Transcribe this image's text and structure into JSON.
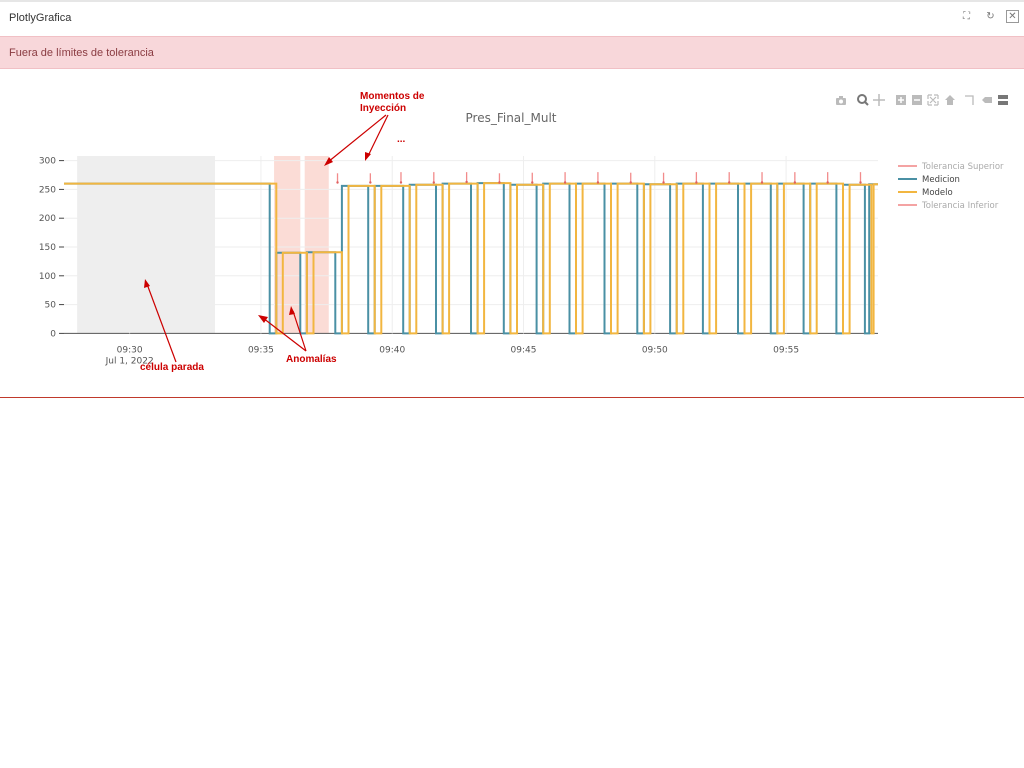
{
  "window": {
    "title": "PlotlyGrafica"
  },
  "window_controls": [
    {
      "name": "fullscreen-icon",
      "glyph": "⛶"
    },
    {
      "name": "refresh-icon",
      "glyph": "↻"
    },
    {
      "name": "close-icon",
      "glyph": "✕"
    }
  ],
  "alert": {
    "message": "Fuera de límites de tolerancia",
    "color": "#f8d7da"
  },
  "modebar": [
    "camera-icon",
    "zoom-icon",
    "pan-icon",
    "zoom-in-icon",
    "zoom-out-icon",
    "autoscale-icon",
    "reset-axes-icon",
    "spike-lines-icon",
    "hover-closest-icon",
    "hover-compare-icon"
  ],
  "annotations": {
    "injection_line1": "Momentos de",
    "injection_line2": "Inyección",
    "ellipsis": "...",
    "stopped": "célula parada",
    "anomalies": "Anomalías",
    "color": "#cc0000"
  },
  "chart_data": {
    "type": "line",
    "title": "Pres_Final_Mult",
    "x_axis": {
      "type": "date",
      "range": [
        "2022-07-01T09:27:30",
        "2022-07-01T09:58:30"
      ],
      "ticks": [
        {
          "x": "2022-07-01T09:30:00",
          "label": "09:30",
          "sub": "Jul 1, 2022"
        },
        {
          "x": "2022-07-01T09:35:00",
          "label": "09:35"
        },
        {
          "x": "2022-07-01T09:40:00",
          "label": "09:40"
        },
        {
          "x": "2022-07-01T09:45:00",
          "label": "09:45"
        },
        {
          "x": "2022-07-01T09:50:00",
          "label": "09:50"
        },
        {
          "x": "2022-07-01T09:55:00",
          "label": "09:55"
        }
      ]
    },
    "y_axis": {
      "range": [
        -8,
        308
      ],
      "ticks": [
        0,
        50,
        100,
        150,
        200,
        250,
        300
      ]
    },
    "grid": true,
    "legend_position": "right",
    "legend": [
      {
        "name": "Tolerancia Superior",
        "color": "#f4a3a3"
      },
      {
        "name": "Medicion",
        "color": "#4a90a4"
      },
      {
        "name": "Modelo",
        "color": "#f2b640"
      },
      {
        "name": "Tolerancia Inferior",
        "color": "#f4a3a3"
      }
    ],
    "shaded_regions": [
      {
        "x0": "2022-07-01T09:28:00",
        "x1": "2022-07-01T09:33:15",
        "color": "#eeeeee"
      },
      {
        "x0": "2022-07-01T09:35:30",
        "x1": "2022-07-01T09:36:30",
        "color": "#fbdcd6"
      },
      {
        "x0": "2022-07-01T09:36:40",
        "x1": "2022-07-01T09:37:35",
        "color": "#fbdcd6"
      }
    ],
    "cycles": [
      {
        "dip": "2022-07-01T09:35:30",
        "level": 140
      },
      {
        "dip": "2022-07-01T09:36:40",
        "level": 140
      },
      {
        "dip": "2022-07-01T09:38:00",
        "level": 256
      },
      {
        "dip": "2022-07-01T09:39:20",
        "level": 256
      },
      {
        "dip": "2022-07-01T09:40:30",
        "level": 258
      },
      {
        "dip": "2022-07-01T09:41:40",
        "level": 260
      },
      {
        "dip": "2022-07-01T09:43:00",
        "level": 261
      },
      {
        "dip": "2022-07-01T09:44:20",
        "level": 258
      },
      {
        "dip": "2022-07-01T09:45:30",
        "level": 260
      },
      {
        "dip": "2022-07-01T09:46:40",
        "level": 260
      },
      {
        "dip": "2022-07-01T09:48:00",
        "level": 260
      },
      {
        "dip": "2022-07-01T09:49:20",
        "level": 259
      },
      {
        "dip": "2022-07-01T09:50:30",
        "level": 260
      },
      {
        "dip": "2022-07-01T09:51:40",
        "level": 260
      },
      {
        "dip": "2022-07-01T09:53:00",
        "level": 260
      },
      {
        "dip": "2022-07-01T09:54:20",
        "level": 260
      },
      {
        "dip": "2022-07-01T09:55:30",
        "level": 260
      },
      {
        "dip": "2022-07-01T09:56:40",
        "level": 260
      },
      {
        "dip": "2022-07-01T09:58:00",
        "level": 260
      }
    ],
    "initial_level": 260,
    "series": [
      {
        "name": "Medicion",
        "color": "#4a90a4",
        "points": [
          [
            "2022-07-01T09:27:30",
            260
          ],
          [
            "2022-07-01T09:35:20",
            260
          ],
          [
            "2022-07-01T09:35:20",
            0
          ],
          [
            "2022-07-01T09:35:35",
            0
          ],
          [
            "2022-07-01T09:35:35",
            140
          ],
          [
            "2022-07-01T09:36:30",
            140
          ],
          [
            "2022-07-01T09:36:30",
            0
          ],
          [
            "2022-07-01T09:36:45",
            0
          ],
          [
            "2022-07-01T09:36:45",
            141
          ],
          [
            "2022-07-01T09:37:50",
            141
          ],
          [
            "2022-07-01T09:37:50",
            0
          ],
          [
            "2022-07-01T09:38:05",
            0
          ],
          [
            "2022-07-01T09:38:05",
            256
          ],
          [
            "2022-07-01T09:39:05",
            256
          ],
          [
            "2022-07-01T09:39:05",
            0
          ],
          [
            "2022-07-01T09:39:20",
            0
          ],
          [
            "2022-07-01T09:39:20",
            256
          ],
          [
            "2022-07-01T09:40:25",
            256
          ],
          [
            "2022-07-01T09:40:25",
            0
          ],
          [
            "2022-07-01T09:40:40",
            0
          ],
          [
            "2022-07-01T09:40:40",
            258
          ],
          [
            "2022-07-01T09:41:40",
            258
          ],
          [
            "2022-07-01T09:41:40",
            0
          ],
          [
            "2022-07-01T09:41:55",
            0
          ],
          [
            "2022-07-01T09:41:55",
            260
          ],
          [
            "2022-07-01T09:43:00",
            260
          ],
          [
            "2022-07-01T09:43:00",
            0
          ],
          [
            "2022-07-01T09:43:15",
            0
          ],
          [
            "2022-07-01T09:43:15",
            261
          ],
          [
            "2022-07-01T09:44:15",
            261
          ],
          [
            "2022-07-01T09:44:15",
            0
          ],
          [
            "2022-07-01T09:44:30",
            0
          ],
          [
            "2022-07-01T09:44:30",
            258
          ],
          [
            "2022-07-01T09:45:30",
            258
          ],
          [
            "2022-07-01T09:45:30",
            0
          ],
          [
            "2022-07-01T09:45:45",
            0
          ],
          [
            "2022-07-01T09:45:45",
            260
          ],
          [
            "2022-07-01T09:46:45",
            260
          ],
          [
            "2022-07-01T09:46:45",
            0
          ],
          [
            "2022-07-01T09:47:00",
            0
          ],
          [
            "2022-07-01T09:47:00",
            260
          ],
          [
            "2022-07-01T09:48:05",
            260
          ],
          [
            "2022-07-01T09:48:05",
            0
          ],
          [
            "2022-07-01T09:48:20",
            0
          ],
          [
            "2022-07-01T09:48:20",
            260
          ],
          [
            "2022-07-01T09:49:20",
            260
          ],
          [
            "2022-07-01T09:49:20",
            0
          ],
          [
            "2022-07-01T09:49:35",
            0
          ],
          [
            "2022-07-01T09:49:35",
            259
          ],
          [
            "2022-07-01T09:50:35",
            259
          ],
          [
            "2022-07-01T09:50:35",
            0
          ],
          [
            "2022-07-01T09:50:50",
            0
          ],
          [
            "2022-07-01T09:50:50",
            260
          ],
          [
            "2022-07-01T09:51:50",
            260
          ],
          [
            "2022-07-01T09:51:50",
            0
          ],
          [
            "2022-07-01T09:52:05",
            0
          ],
          [
            "2022-07-01T09:52:05",
            260
          ],
          [
            "2022-07-01T09:53:10",
            260
          ],
          [
            "2022-07-01T09:53:10",
            0
          ],
          [
            "2022-07-01T09:53:25",
            0
          ],
          [
            "2022-07-01T09:53:25",
            260
          ],
          [
            "2022-07-01T09:54:25",
            260
          ],
          [
            "2022-07-01T09:54:25",
            0
          ],
          [
            "2022-07-01T09:54:40",
            0
          ],
          [
            "2022-07-01T09:54:40",
            260
          ],
          [
            "2022-07-01T09:55:40",
            260
          ],
          [
            "2022-07-01T09:55:40",
            0
          ],
          [
            "2022-07-01T09:55:55",
            0
          ],
          [
            "2022-07-01T09:55:55",
            260
          ],
          [
            "2022-07-01T09:56:55",
            260
          ],
          [
            "2022-07-01T09:56:55",
            0
          ],
          [
            "2022-07-01T09:57:10",
            0
          ],
          [
            "2022-07-01T09:57:10",
            258
          ],
          [
            "2022-07-01T09:58:00",
            258
          ],
          [
            "2022-07-01T09:58:00",
            0
          ],
          [
            "2022-07-01T09:58:10",
            0
          ],
          [
            "2022-07-01T09:58:10",
            259
          ],
          [
            "2022-07-01T09:58:30",
            259
          ]
        ]
      },
      {
        "name": "Modelo",
        "color": "#f2b640",
        "points": [
          [
            "2022-07-01T09:27:30",
            260
          ],
          [
            "2022-07-01T09:35:35",
            260
          ],
          [
            "2022-07-01T09:35:35",
            0
          ],
          [
            "2022-07-01T09:35:50",
            0
          ],
          [
            "2022-07-01T09:35:50",
            140
          ],
          [
            "2022-07-01T09:36:45",
            140
          ],
          [
            "2022-07-01T09:36:45",
            0
          ],
          [
            "2022-07-01T09:37:00",
            0
          ],
          [
            "2022-07-01T09:37:00",
            141
          ],
          [
            "2022-07-01T09:38:05",
            141
          ],
          [
            "2022-07-01T09:38:05",
            0
          ],
          [
            "2022-07-01T09:38:20",
            0
          ],
          [
            "2022-07-01T09:38:20",
            256
          ],
          [
            "2022-07-01T09:39:20",
            256
          ],
          [
            "2022-07-01T09:39:20",
            0
          ],
          [
            "2022-07-01T09:39:35",
            0
          ],
          [
            "2022-07-01T09:39:35",
            256
          ],
          [
            "2022-07-01T09:40:40",
            256
          ],
          [
            "2022-07-01T09:40:40",
            0
          ],
          [
            "2022-07-01T09:40:55",
            0
          ],
          [
            "2022-07-01T09:40:55",
            258
          ],
          [
            "2022-07-01T09:41:55",
            258
          ],
          [
            "2022-07-01T09:41:55",
            0
          ],
          [
            "2022-07-01T09:42:10",
            0
          ],
          [
            "2022-07-01T09:42:10",
            260
          ],
          [
            "2022-07-01T09:43:15",
            260
          ],
          [
            "2022-07-01T09:43:15",
            0
          ],
          [
            "2022-07-01T09:43:30",
            0
          ],
          [
            "2022-07-01T09:43:30",
            261
          ],
          [
            "2022-07-01T09:44:30",
            261
          ],
          [
            "2022-07-01T09:44:30",
            0
          ],
          [
            "2022-07-01T09:44:45",
            0
          ],
          [
            "2022-07-01T09:44:45",
            258
          ],
          [
            "2022-07-01T09:45:45",
            258
          ],
          [
            "2022-07-01T09:45:45",
            0
          ],
          [
            "2022-07-01T09:46:00",
            0
          ],
          [
            "2022-07-01T09:46:00",
            260
          ],
          [
            "2022-07-01T09:47:00",
            260
          ],
          [
            "2022-07-01T09:47:00",
            0
          ],
          [
            "2022-07-01T09:47:15",
            0
          ],
          [
            "2022-07-01T09:47:15",
            260
          ],
          [
            "2022-07-01T09:48:20",
            260
          ],
          [
            "2022-07-01T09:48:20",
            0
          ],
          [
            "2022-07-01T09:48:35",
            0
          ],
          [
            "2022-07-01T09:48:35",
            260
          ],
          [
            "2022-07-01T09:49:35",
            260
          ],
          [
            "2022-07-01T09:49:35",
            0
          ],
          [
            "2022-07-01T09:49:50",
            0
          ],
          [
            "2022-07-01T09:49:50",
            259
          ],
          [
            "2022-07-01T09:50:50",
            259
          ],
          [
            "2022-07-01T09:50:50",
            0
          ],
          [
            "2022-07-01T09:51:05",
            0
          ],
          [
            "2022-07-01T09:51:05",
            260
          ],
          [
            "2022-07-01T09:52:05",
            260
          ],
          [
            "2022-07-01T09:52:05",
            0
          ],
          [
            "2022-07-01T09:52:20",
            0
          ],
          [
            "2022-07-01T09:52:20",
            260
          ],
          [
            "2022-07-01T09:53:25",
            260
          ],
          [
            "2022-07-01T09:53:25",
            0
          ],
          [
            "2022-07-01T09:53:40",
            0
          ],
          [
            "2022-07-01T09:53:40",
            260
          ],
          [
            "2022-07-01T09:54:40",
            260
          ],
          [
            "2022-07-01T09:54:40",
            0
          ],
          [
            "2022-07-01T09:54:55",
            0
          ],
          [
            "2022-07-01T09:54:55",
            260
          ],
          [
            "2022-07-01T09:55:55",
            260
          ],
          [
            "2022-07-01T09:55:55",
            0
          ],
          [
            "2022-07-01T09:56:10",
            0
          ],
          [
            "2022-07-01T09:56:10",
            260
          ],
          [
            "2022-07-01T09:57:10",
            260
          ],
          [
            "2022-07-01T09:57:10",
            0
          ],
          [
            "2022-07-01T09:57:25",
            0
          ],
          [
            "2022-07-01T09:57:25",
            258
          ],
          [
            "2022-07-01T09:58:15",
            258
          ],
          [
            "2022-07-01T09:58:15",
            0
          ],
          [
            "2022-07-01T09:58:20",
            0
          ],
          [
            "2022-07-01T09:58:20",
            259
          ],
          [
            "2022-07-01T09:58:30",
            259
          ]
        ]
      }
    ],
    "injection_spikes": [
      {
        "x": "2022-07-01T09:37:55",
        "y0": 262,
        "y1": 278
      },
      {
        "x": "2022-07-01T09:39:10",
        "y0": 262,
        "y1": 278
      },
      {
        "x": "2022-07-01T09:40:20",
        "y0": 262,
        "y1": 280
      },
      {
        "x": "2022-07-01T09:41:35",
        "y0": 262,
        "y1": 280
      },
      {
        "x": "2022-07-01T09:42:50",
        "y0": 263,
        "y1": 280
      },
      {
        "x": "2022-07-01T09:44:05",
        "y0": 262,
        "y1": 278
      },
      {
        "x": "2022-07-01T09:45:20",
        "y0": 262,
        "y1": 279
      },
      {
        "x": "2022-07-01T09:46:35",
        "y0": 262,
        "y1": 280
      },
      {
        "x": "2022-07-01T09:47:50",
        "y0": 262,
        "y1": 280
      },
      {
        "x": "2022-07-01T09:49:05",
        "y0": 262,
        "y1": 279
      },
      {
        "x": "2022-07-01T09:50:20",
        "y0": 262,
        "y1": 279
      },
      {
        "x": "2022-07-01T09:51:35",
        "y0": 262,
        "y1": 280
      },
      {
        "x": "2022-07-01T09:52:50",
        "y0": 262,
        "y1": 280
      },
      {
        "x": "2022-07-01T09:54:05",
        "y0": 262,
        "y1": 280
      },
      {
        "x": "2022-07-01T09:55:20",
        "y0": 262,
        "y1": 280
      },
      {
        "x": "2022-07-01T09:56:35",
        "y0": 262,
        "y1": 280
      },
      {
        "x": "2022-07-01T09:57:50",
        "y0": 262,
        "y1": 280
      }
    ]
  }
}
